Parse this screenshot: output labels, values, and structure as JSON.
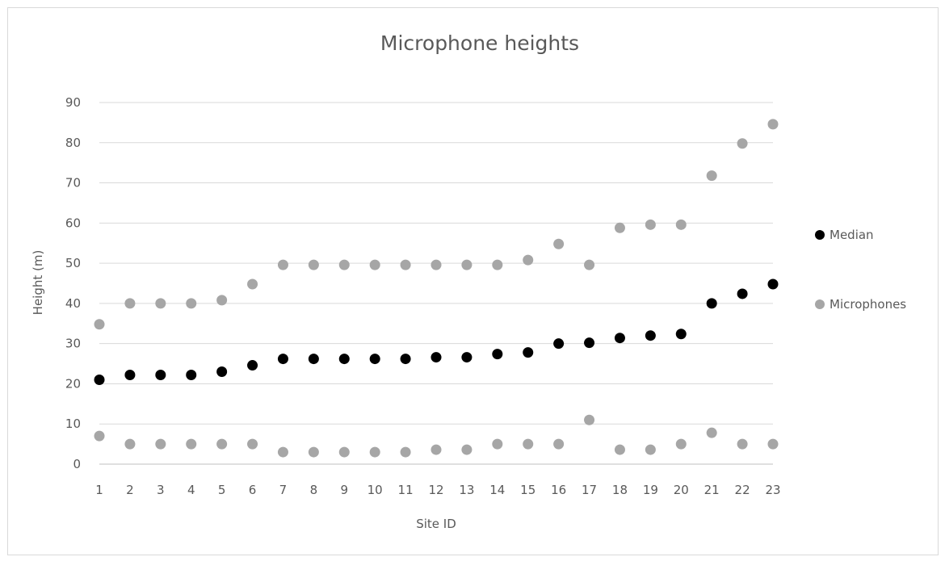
{
  "chart_data": {
    "type": "scatter",
    "title": "Microphone heights",
    "xlabel": "Site ID",
    "ylabel": "Height (m)",
    "x_ticks": [
      "1",
      "2",
      "3",
      "4",
      "5",
      "6",
      "7",
      "8",
      "9",
      "10",
      "11",
      "12",
      "13",
      "14",
      "15",
      "16",
      "17",
      "18",
      "19",
      "20",
      "21",
      "22",
      "23"
    ],
    "y_ticks": [
      "0",
      "10",
      "20",
      "30",
      "40",
      "50",
      "60",
      "70",
      "80",
      "90"
    ],
    "xlim": [
      1,
      23
    ],
    "ylim": [
      0,
      90
    ],
    "grid": "horizontal",
    "legend_position": "right",
    "series": [
      {
        "name": "Median",
        "color": "#000000",
        "points": [
          [
            1,
            21
          ],
          [
            2,
            22.2
          ],
          [
            3,
            22.2
          ],
          [
            4,
            22.2
          ],
          [
            5,
            23
          ],
          [
            6,
            24.6
          ],
          [
            7,
            26.2
          ],
          [
            8,
            26.2
          ],
          [
            9,
            26.2
          ],
          [
            10,
            26.2
          ],
          [
            11,
            26.2
          ],
          [
            12,
            26.6
          ],
          [
            13,
            26.6
          ],
          [
            14,
            27.4
          ],
          [
            15,
            27.8
          ],
          [
            16,
            30
          ],
          [
            17,
            30.2
          ],
          [
            18,
            31.4
          ],
          [
            19,
            32
          ],
          [
            20,
            32.4
          ],
          [
            21,
            40
          ],
          [
            22,
            42.4
          ],
          [
            23,
            44.8
          ]
        ]
      },
      {
        "name": "Microphones",
        "color": "#a6a6a6",
        "points": [
          [
            1,
            34.8
          ],
          [
            1,
            7
          ],
          [
            2,
            40
          ],
          [
            2,
            5
          ],
          [
            3,
            40
          ],
          [
            3,
            5
          ],
          [
            4,
            40
          ],
          [
            4,
            5
          ],
          [
            5,
            40.8
          ],
          [
            5,
            5
          ],
          [
            6,
            44.8
          ],
          [
            6,
            5
          ],
          [
            7,
            49.6
          ],
          [
            7,
            3
          ],
          [
            8,
            49.6
          ],
          [
            8,
            3
          ],
          [
            9,
            49.6
          ],
          [
            9,
            3
          ],
          [
            10,
            49.6
          ],
          [
            10,
            3
          ],
          [
            11,
            49.6
          ],
          [
            11,
            3
          ],
          [
            12,
            49.6
          ],
          [
            12,
            3.6
          ],
          [
            13,
            49.6
          ],
          [
            13,
            3.6
          ],
          [
            14,
            49.6
          ],
          [
            14,
            5
          ],
          [
            15,
            50.8
          ],
          [
            15,
            5
          ],
          [
            16,
            54.8
          ],
          [
            16,
            5
          ],
          [
            17,
            49.6
          ],
          [
            17,
            11
          ],
          [
            18,
            58.8
          ],
          [
            18,
            3.6
          ],
          [
            19,
            59.6
          ],
          [
            19,
            3.6
          ],
          [
            20,
            59.6
          ],
          [
            20,
            5
          ],
          [
            21,
            71.8
          ],
          [
            21,
            7.8
          ],
          [
            22,
            79.8
          ],
          [
            22,
            5
          ],
          [
            23,
            84.6
          ],
          [
            23,
            5
          ]
        ]
      }
    ]
  }
}
